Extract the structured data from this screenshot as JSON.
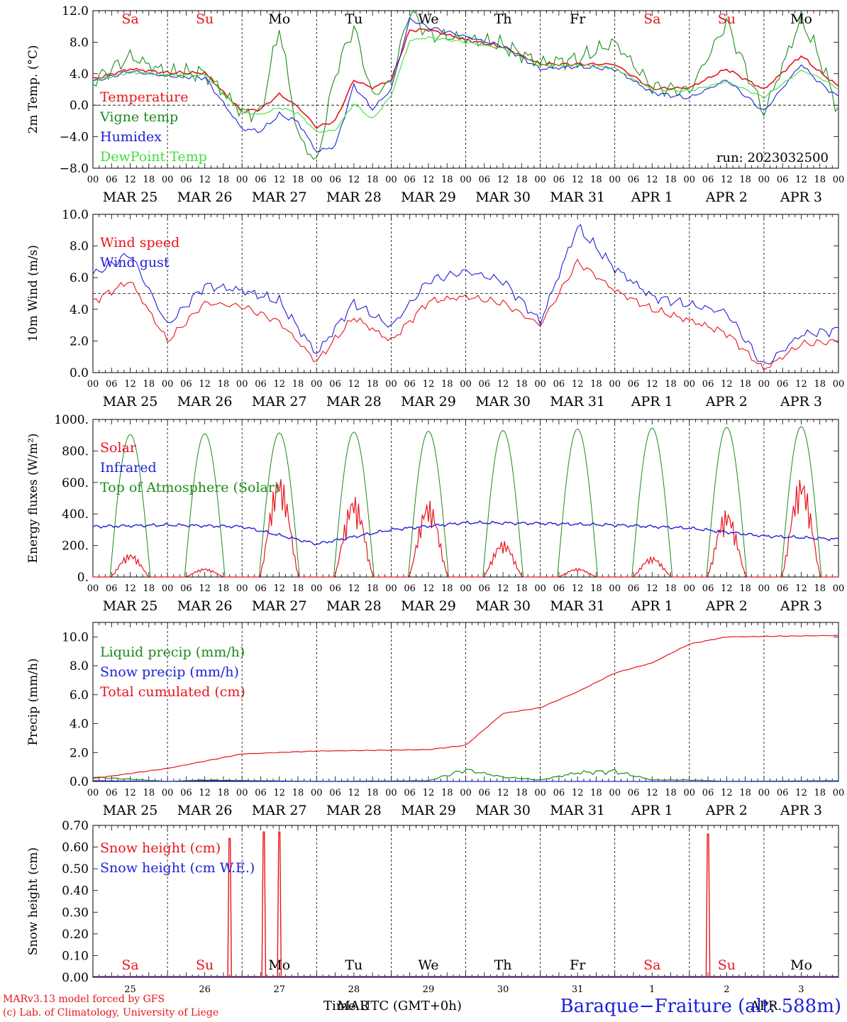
{
  "chart_data": [
    {
      "type": "line",
      "ylabel": "2m Temp. (°C)",
      "ylim": [
        -8,
        12
      ],
      "yticks": [
        "−8.0",
        "−4.0",
        "0.0",
        "4.0",
        "8.0",
        "12.0"
      ],
      "ytick_values": [
        -8,
        -4,
        0,
        4,
        8,
        12
      ],
      "reference_line": 0,
      "x_start": "2023-03-25 00 UTC",
      "x_end": "2023-04-04 00 UTC",
      "day_letters": [
        "Sa",
        "Su",
        "Mo",
        "Tu",
        "We",
        "Th",
        "Fr",
        "Sa",
        "Su",
        "Mo"
      ],
      "day_letter_colors": [
        "#e8141c",
        "#e8141c",
        "#000000",
        "#000000",
        "#000000",
        "#000000",
        "#000000",
        "#e8141c",
        "#e8141c",
        "#000000"
      ],
      "annotation": "run: 2023032500",
      "legend": "top-left",
      "hours_from_start": [
        0,
        12,
        24,
        36,
        48,
        54,
        60,
        66,
        72,
        78,
        84,
        90,
        96,
        102,
        108,
        120,
        132,
        144,
        156,
        168,
        180,
        192,
        204,
        216,
        228,
        234,
        240
      ],
      "series": [
        {
          "name": "Temperature",
          "color": "#e8141c",
          "values": [
            3.3,
            4.6,
            4.1,
            4.1,
            -0.8,
            -0.5,
            1.4,
            -0.2,
            -2.8,
            -2.0,
            3.2,
            2.2,
            3.2,
            9.5,
            9.6,
            8.3,
            7.4,
            5.2,
            5.2,
            5.2,
            2.1,
            2.2,
            4.6,
            2.0,
            6.3,
            4.2,
            2.4
          ]
        },
        {
          "name": "Vigne temp",
          "color": "#1c8a1c",
          "values": [
            3.0,
            6.2,
            4.1,
            4.1,
            -0.9,
            -1.0,
            10.0,
            -3.8,
            -7.4,
            4.0,
            10.0,
            1.2,
            3.0,
            12.0,
            9.0,
            8.5,
            7.6,
            5.4,
            5.8,
            8.0,
            2.3,
            1.8,
            10.5,
            -1.0,
            11.0,
            6.0,
            -0.8
          ]
        },
        {
          "name": "Humidex",
          "color": "#2020d8",
          "values": [
            3.0,
            4.3,
            3.7,
            3.5,
            -3.0,
            -3.3,
            -1.2,
            -2.1,
            -5.9,
            -5.2,
            2.5,
            -0.5,
            2.0,
            10.9,
            9.9,
            8.7,
            7.5,
            4.6,
            4.9,
            4.6,
            1.6,
            0.9,
            3.2,
            -0.8,
            5.2,
            2.8,
            1.0
          ]
        },
        {
          "name": "DewPoint Temp",
          "color": "#40e040",
          "values": [
            3.1,
            4.2,
            3.8,
            3.8,
            -0.9,
            -1.2,
            -0.3,
            -1.0,
            -3.4,
            -3.2,
            0.2,
            -1.8,
            1.2,
            8.2,
            8.6,
            8.0,
            7.2,
            5.0,
            5.1,
            4.7,
            2.0,
            1.8,
            3.0,
            1.0,
            4.4,
            3.5,
            2.1
          ]
        }
      ]
    },
    {
      "type": "line",
      "ylabel": "10m Wind (m/s)",
      "ylim": [
        0,
        10
      ],
      "yticks": [
        "0.0",
        "2.0",
        "4.0",
        "6.0",
        "8.0",
        "10.0"
      ],
      "ytick_values": [
        0,
        2,
        4,
        6,
        8,
        10
      ],
      "reference_line": 5,
      "legend": "top-left",
      "hours_from_start": [
        0,
        12,
        24,
        36,
        48,
        60,
        72,
        84,
        96,
        108,
        120,
        132,
        144,
        156,
        168,
        180,
        192,
        204,
        216,
        228,
        240
      ],
      "series": [
        {
          "name": "Wind speed",
          "color": "#e8141c",
          "values": [
            4.5,
            5.8,
            2.0,
            4.4,
            4.2,
            3.2,
            0.7,
            3.5,
            2.0,
            4.5,
            4.8,
            4.4,
            3.0,
            7.0,
            5.2,
            4.0,
            3.3,
            2.5,
            0.2,
            1.8,
            2.0
          ]
        },
        {
          "name": "Wind gust",
          "color": "#2020d8",
          "values": [
            6.2,
            7.5,
            3.0,
            5.5,
            5.2,
            4.5,
            1.2,
            4.4,
            2.9,
            5.8,
            6.4,
            5.8,
            3.2,
            9.2,
            6.6,
            4.8,
            4.3,
            3.8,
            0.4,
            2.4,
            2.7
          ]
        }
      ]
    },
    {
      "type": "line",
      "ylabel": "Energy fluxes (W/m²)",
      "ylim": [
        0,
        1000
      ],
      "yticks": [
        "0.",
        "200.",
        "400.",
        "600.",
        "800.",
        "1000."
      ],
      "ytick_values": [
        0,
        200,
        400,
        600,
        800,
        1000
      ],
      "legend": "top-left",
      "toa_daily_peak": [
        905,
        910,
        915,
        920,
        925,
        930,
        940,
        945,
        950,
        955
      ],
      "solar_daily_peak": [
        150,
        55,
        650,
        520,
        490,
        230,
        55,
        130,
        430,
        640
      ],
      "infrared_values": [
        320,
        330,
        320,
        210,
        300,
        345,
        340,
        330,
        310,
        260,
        240
      ],
      "series": [
        {
          "name": "Solar",
          "color": "#e8141c"
        },
        {
          "name": "Infrared",
          "color": "#2020d8"
        },
        {
          "name": "Top of Atmosphere (Solar)",
          "color": "#1c8a1c"
        }
      ]
    },
    {
      "type": "line",
      "ylabel": "Precip (mm/h)",
      "ylim": [
        0,
        11
      ],
      "yticks": [
        "0.0",
        "2.0",
        "4.0",
        "6.0",
        "8.0",
        "10.0"
      ],
      "ytick_values": [
        0,
        2,
        4,
        6,
        8,
        10
      ],
      "legend": "top-left",
      "hours_from_start": [
        0,
        24,
        36,
        48,
        72,
        108,
        120,
        132,
        144,
        156,
        168,
        180,
        192,
        204,
        240
      ],
      "series": [
        {
          "name": "Liquid precip (mm/h)",
          "color": "#1c8a1c",
          "values": [
            0.3,
            0.0,
            0.1,
            0.05,
            0.0,
            0.05,
            0.8,
            0.3,
            0.1,
            0.6,
            0.7,
            0.1,
            0.1,
            0.0,
            0.05
          ]
        },
        {
          "name": "Snow precip (mm/h)",
          "color": "#2020d8",
          "values": [
            0.05,
            0.0,
            0.05,
            0.05,
            0.0,
            0.0,
            0.0,
            0.0,
            0.0,
            0.0,
            0.0,
            0.0,
            0.0,
            0.0,
            0.0
          ]
        },
        {
          "name": "Total cumulated (cm)",
          "color": "#e8141c",
          "values": [
            0.2,
            0.9,
            1.4,
            1.9,
            2.1,
            2.2,
            2.5,
            4.7,
            5.1,
            6.2,
            7.5,
            8.2,
            9.5,
            10.0,
            10.1
          ]
        }
      ]
    },
    {
      "type": "line",
      "ylabel": "Snow height (cm)",
      "ylim": [
        0,
        0.7
      ],
      "yticks": [
        "0.00",
        "0.10",
        "0.20",
        "0.30",
        "0.40",
        "0.50",
        "0.60",
        "0.70"
      ],
      "ytick_values": [
        0,
        0.1,
        0.2,
        0.3,
        0.4,
        0.5,
        0.6,
        0.7
      ],
      "legend": "top-left",
      "spikes_hours_from_start": [
        44,
        55,
        60,
        198
      ],
      "spikes_values": [
        0.64,
        0.67,
        0.67,
        0.66
      ],
      "day_letters": [
        "Sa",
        "Su",
        "Mo",
        "Tu",
        "We",
        "Th",
        "Fr",
        "Sa",
        "Su",
        "Mo"
      ],
      "day_numbers": [
        "25",
        "26",
        "27",
        "28",
        "29",
        "30",
        "31",
        "1",
        "2",
        "3"
      ],
      "month_label": "MAR",
      "month_label_2": "APR.",
      "series": [
        {
          "name": "Snow height (cm)",
          "color": "#e8141c"
        },
        {
          "name": "Snow height (cm W.E.)",
          "color": "#2020d8"
        }
      ]
    }
  ],
  "x_axis": {
    "hour_labels": [
      "00",
      "06",
      "12",
      "18"
    ],
    "final_hour_label": "00",
    "date_labels": [
      "MAR 25",
      "MAR 26",
      "MAR 27",
      "MAR 28",
      "MAR 29",
      "MAR 30",
      "MAR 31",
      "APR  1",
      "APR  2",
      "APR  3"
    ]
  },
  "footer": {
    "credit_line1": "MARv3.13 model forced by GFS",
    "credit_line2": "(c) Lab. of Climatology, University of Liege",
    "time_label": "Time UTC (GMT+0h)",
    "station": "Baraque−Fraiture (alt: 588m)"
  }
}
